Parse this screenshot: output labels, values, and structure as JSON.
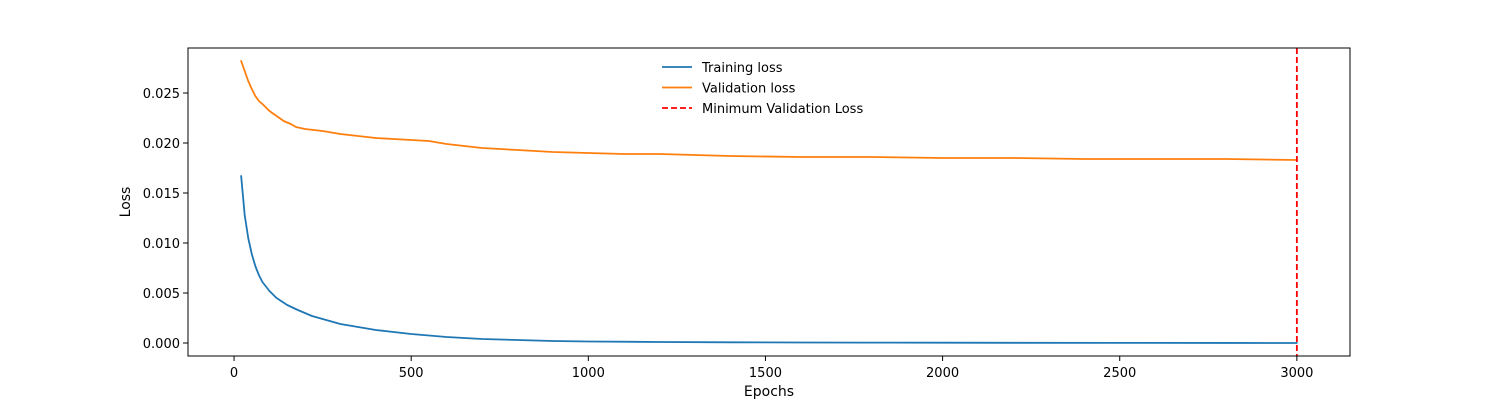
{
  "chart_data": {
    "type": "line",
    "xlabel": "Epochs",
    "ylabel": "Loss",
    "xlim": [
      -130,
      3150
    ],
    "ylim": [
      -0.0013,
      0.0295
    ],
    "x_ticks": [
      0,
      500,
      1000,
      1500,
      2000,
      2500,
      3000
    ],
    "x_tick_labels": [
      "0",
      "500",
      "1000",
      "1500",
      "2000",
      "2500",
      "3000"
    ],
    "y_ticks": [
      0.0,
      0.005,
      0.01,
      0.015,
      0.02,
      0.025
    ],
    "y_tick_labels": [
      "0.000",
      "0.005",
      "0.010",
      "0.015",
      "0.020",
      "0.025"
    ],
    "grid": false,
    "legend_position": "top-center",
    "series": [
      {
        "name": "Training loss",
        "color": "#1f77b4",
        "style": "solid",
        "x": [
          20,
          30,
          40,
          50,
          60,
          70,
          80,
          100,
          120,
          150,
          180,
          220,
          260,
          300,
          350,
          400,
          450,
          500,
          600,
          700,
          800,
          900,
          1000,
          1200,
          1400,
          1600,
          1800,
          2000,
          2200,
          2500,
          2800,
          3000
        ],
        "y": [
          0.0167,
          0.0128,
          0.0105,
          0.0089,
          0.0077,
          0.0068,
          0.0061,
          0.0052,
          0.0045,
          0.0038,
          0.0033,
          0.0027,
          0.0023,
          0.0019,
          0.0016,
          0.0013,
          0.0011,
          0.0009,
          0.0006,
          0.0004,
          0.0003,
          0.0002,
          0.00015,
          0.0001,
          7e-05,
          5e-05,
          4e-05,
          3e-05,
          2e-05,
          1e-05,
          5e-06,
          0.0
        ]
      },
      {
        "name": "Validation loss",
        "color": "#ff7f0e",
        "style": "solid",
        "x": [
          20,
          30,
          40,
          50,
          60,
          70,
          80,
          100,
          120,
          140,
          160,
          175,
          200,
          250,
          300,
          350,
          400,
          450,
          500,
          550,
          600,
          700,
          800,
          900,
          1000,
          1100,
          1200,
          1400,
          1600,
          1800,
          2000,
          2200,
          2400,
          2600,
          2800,
          3000
        ],
        "y": [
          0.0282,
          0.0272,
          0.0262,
          0.0254,
          0.0247,
          0.0242,
          0.0239,
          0.0232,
          0.0227,
          0.0222,
          0.0219,
          0.0216,
          0.0214,
          0.0212,
          0.0209,
          0.0207,
          0.0205,
          0.0204,
          0.0203,
          0.0202,
          0.0199,
          0.0195,
          0.0193,
          0.0191,
          0.019,
          0.0189,
          0.0189,
          0.0187,
          0.0186,
          0.0186,
          0.0185,
          0.0185,
          0.0184,
          0.0184,
          0.0184,
          0.0183
        ]
      }
    ],
    "vlines": [
      {
        "name": "Minimum Validation Loss",
        "x": 3000,
        "color": "#ff0000",
        "style": "dashed"
      }
    ]
  }
}
